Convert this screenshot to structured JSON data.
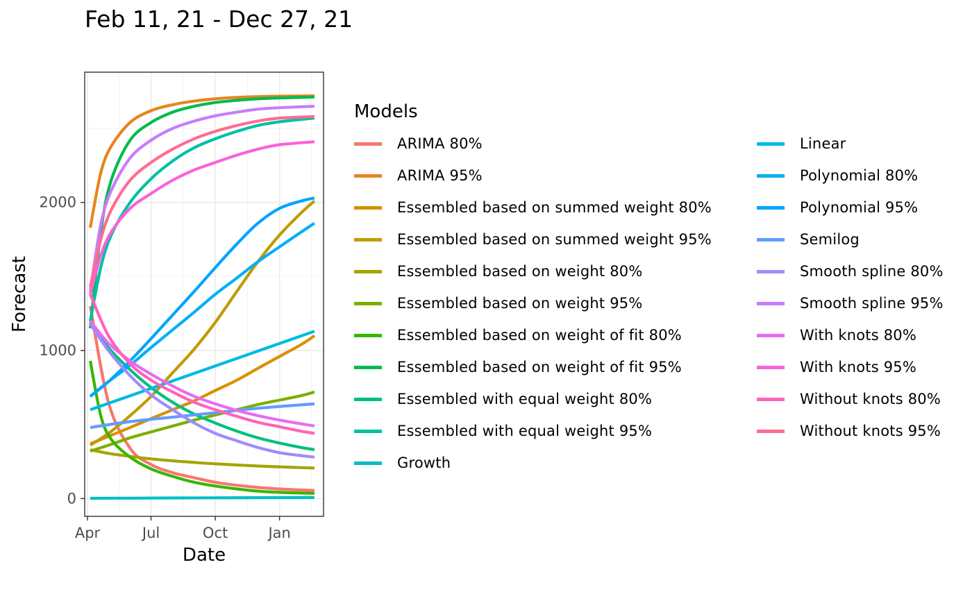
{
  "chart_data": {
    "type": "line",
    "title": "Feb 11, 21 - Dec 27, 21",
    "xlabel": "Date",
    "ylabel": "Forecast",
    "x_range": [
      "2021-03-28",
      "2022-03-05"
    ],
    "ylim": [
      -120,
      2880
    ],
    "x_ticks": [
      {
        "date": "2021-04-01",
        "label": "Apr"
      },
      {
        "date": "2021-07-01",
        "label": "Jul"
      },
      {
        "date": "2021-10-01",
        "label": "Oct"
      },
      {
        "date": "2022-01-01",
        "label": "Jan"
      }
    ],
    "y_ticks": [
      {
        "value": 0,
        "label": "0"
      },
      {
        "value": 1000,
        "label": "1000"
      },
      {
        "value": 2000,
        "label": "2000"
      }
    ],
    "grid": true,
    "legend": {
      "title": "Models",
      "position": "right"
    },
    "series": [
      {
        "name": "ARIMA 80%",
        "color": "#F8766D",
        "points": [
          [
            "2021-04-05",
            1300
          ],
          [
            "2021-05-01",
            650
          ],
          [
            "2021-06-01",
            340
          ],
          [
            "2021-07-01",
            230
          ],
          [
            "2021-08-01",
            175
          ],
          [
            "2021-09-01",
            140
          ],
          [
            "2021-10-01",
            110
          ],
          [
            "2021-11-01",
            90
          ],
          [
            "2021-12-01",
            75
          ],
          [
            "2022-01-01",
            65
          ],
          [
            "2022-02-01",
            58
          ],
          [
            "2022-02-20",
            55
          ]
        ]
      },
      {
        "name": "ARIMA 95%",
        "color": "#E7851E",
        "points": [
          [
            "2021-04-05",
            1830
          ],
          [
            "2021-04-20",
            2200
          ],
          [
            "2021-05-05",
            2380
          ],
          [
            "2021-06-01",
            2540
          ],
          [
            "2021-07-01",
            2620
          ],
          [
            "2021-08-01",
            2660
          ],
          [
            "2021-09-01",
            2685
          ],
          [
            "2021-10-01",
            2700
          ],
          [
            "2021-11-01",
            2710
          ],
          [
            "2021-12-01",
            2715
          ],
          [
            "2022-01-01",
            2718
          ],
          [
            "2022-02-20",
            2720
          ]
        ]
      },
      {
        "name": "Essembled based on summed weight 80%",
        "color": "#D89000",
        "points": [
          [
            "2021-04-05",
            370
          ],
          [
            "2021-05-01",
            420
          ],
          [
            "2021-06-01",
            480
          ],
          [
            "2021-07-01",
            540
          ],
          [
            "2021-08-01",
            600
          ],
          [
            "2021-09-01",
            660
          ],
          [
            "2021-10-01",
            730
          ],
          [
            "2021-11-01",
            800
          ],
          [
            "2021-12-01",
            880
          ],
          [
            "2022-01-01",
            960
          ],
          [
            "2022-02-01",
            1040
          ],
          [
            "2022-02-20",
            1100
          ]
        ]
      },
      {
        "name": "Essembled based on summed weight 95%",
        "color": "#C09B00",
        "points": [
          [
            "2021-04-05",
            360
          ],
          [
            "2021-05-01",
            440
          ],
          [
            "2021-06-01",
            560
          ],
          [
            "2021-07-01",
            690
          ],
          [
            "2021-08-01",
            850
          ],
          [
            "2021-09-01",
            1010
          ],
          [
            "2021-10-01",
            1190
          ],
          [
            "2021-11-01",
            1400
          ],
          [
            "2021-12-01",
            1600
          ],
          [
            "2022-01-01",
            1780
          ],
          [
            "2022-02-01",
            1930
          ],
          [
            "2022-02-20",
            2010
          ]
        ]
      },
      {
        "name": "Essembled based on weight 80%",
        "color": "#A3A500",
        "points": [
          [
            "2021-04-05",
            330
          ],
          [
            "2021-05-01",
            305
          ],
          [
            "2021-06-01",
            285
          ],
          [
            "2021-07-01",
            268
          ],
          [
            "2021-08-01",
            255
          ],
          [
            "2021-09-01",
            244
          ],
          [
            "2021-10-01",
            235
          ],
          [
            "2021-11-01",
            227
          ],
          [
            "2021-12-01",
            220
          ],
          [
            "2022-01-01",
            214
          ],
          [
            "2022-02-01",
            209
          ],
          [
            "2022-02-20",
            206
          ]
        ]
      },
      {
        "name": "Essembled based on weight 95%",
        "color": "#7CAE00",
        "points": [
          [
            "2021-04-05",
            320
          ],
          [
            "2021-05-01",
            360
          ],
          [
            "2021-06-01",
            410
          ],
          [
            "2021-07-01",
            450
          ],
          [
            "2021-08-01",
            490
          ],
          [
            "2021-09-01",
            530
          ],
          [
            "2021-10-01",
            565
          ],
          [
            "2021-11-01",
            600
          ],
          [
            "2021-12-01",
            635
          ],
          [
            "2022-01-01",
            665
          ],
          [
            "2022-02-01",
            695
          ],
          [
            "2022-02-20",
            720
          ]
        ]
      },
      {
        "name": "Essembled based on weight of fit 80%",
        "color": "#39B600",
        "points": [
          [
            "2021-04-05",
            930
          ],
          [
            "2021-04-20",
            560
          ],
          [
            "2021-05-05",
            400
          ],
          [
            "2021-06-01",
            280
          ],
          [
            "2021-07-01",
            200
          ],
          [
            "2021-08-01",
            150
          ],
          [
            "2021-09-01",
            110
          ],
          [
            "2021-10-01",
            85
          ],
          [
            "2021-11-01",
            65
          ],
          [
            "2021-12-01",
            50
          ],
          [
            "2022-01-01",
            42
          ],
          [
            "2022-02-20",
            35
          ]
        ]
      },
      {
        "name": "Essembled based on weight of fit 95%",
        "color": "#00BB4E",
        "points": [
          [
            "2021-04-05",
            1150
          ],
          [
            "2021-04-20",
            1800
          ],
          [
            "2021-05-05",
            2150
          ],
          [
            "2021-06-01",
            2420
          ],
          [
            "2021-07-01",
            2540
          ],
          [
            "2021-08-01",
            2610
          ],
          [
            "2021-09-01",
            2650
          ],
          [
            "2021-10-01",
            2675
          ],
          [
            "2021-11-01",
            2690
          ],
          [
            "2021-12-01",
            2700
          ],
          [
            "2022-01-01",
            2706
          ],
          [
            "2022-02-20",
            2712
          ]
        ]
      },
      {
        "name": "Essembled with equal weight 80%",
        "color": "#00BF7D",
        "points": [
          [
            "2021-04-05",
            1200
          ],
          [
            "2021-05-01",
            1020
          ],
          [
            "2021-06-01",
            870
          ],
          [
            "2021-07-01",
            750
          ],
          [
            "2021-08-01",
            650
          ],
          [
            "2021-09-01",
            570
          ],
          [
            "2021-10-01",
            510
          ],
          [
            "2021-11-01",
            455
          ],
          [
            "2021-12-01",
            410
          ],
          [
            "2022-01-01",
            375
          ],
          [
            "2022-02-01",
            345
          ],
          [
            "2022-02-20",
            330
          ]
        ]
      },
      {
        "name": "Essembled with equal weight 95%",
        "color": "#00C1A3",
        "points": [
          [
            "2021-04-05",
            1200
          ],
          [
            "2021-04-20",
            1560
          ],
          [
            "2021-05-05",
            1780
          ],
          [
            "2021-06-01",
            2000
          ],
          [
            "2021-07-01",
            2160
          ],
          [
            "2021-08-01",
            2280
          ],
          [
            "2021-09-01",
            2370
          ],
          [
            "2021-10-01",
            2430
          ],
          [
            "2021-11-01",
            2480
          ],
          [
            "2021-12-01",
            2520
          ],
          [
            "2022-01-01",
            2545
          ],
          [
            "2022-02-20",
            2570
          ]
        ]
      },
      {
        "name": "Growth",
        "color": "#00BFC4",
        "points": [
          [
            "2021-04-05",
            2
          ],
          [
            "2021-06-01",
            3
          ],
          [
            "2021-08-01",
            4
          ],
          [
            "2021-10-01",
            5
          ],
          [
            "2021-12-01",
            6
          ],
          [
            "2022-02-20",
            7
          ]
        ]
      },
      {
        "name": "Linear",
        "color": "#00BAE0",
        "points": [
          [
            "2021-04-05",
            600
          ],
          [
            "2022-02-20",
            1130
          ]
        ]
      },
      {
        "name": "Polynomial 80%",
        "color": "#00B0F6",
        "points": [
          [
            "2021-04-05",
            690
          ],
          [
            "2021-05-01",
            790
          ],
          [
            "2021-06-01",
            900
          ],
          [
            "2021-07-01",
            1020
          ],
          [
            "2021-08-01",
            1140
          ],
          [
            "2021-09-01",
            1260
          ],
          [
            "2021-10-01",
            1380
          ],
          [
            "2021-11-01",
            1490
          ],
          [
            "2021-12-01",
            1600
          ],
          [
            "2022-01-01",
            1700
          ],
          [
            "2022-02-01",
            1800
          ],
          [
            "2022-02-20",
            1860
          ]
        ]
      },
      {
        "name": "Polynomial 95%",
        "color": "#00A5FF",
        "points": [
          [
            "2021-04-05",
            690
          ],
          [
            "2021-05-01",
            790
          ],
          [
            "2021-06-01",
            930
          ],
          [
            "2021-07-01",
            1080
          ],
          [
            "2021-08-01",
            1240
          ],
          [
            "2021-09-01",
            1400
          ],
          [
            "2021-10-01",
            1560
          ],
          [
            "2021-11-01",
            1720
          ],
          [
            "2021-12-01",
            1860
          ],
          [
            "2022-01-01",
            1960
          ],
          [
            "2022-02-01",
            2010
          ],
          [
            "2022-02-20",
            2030
          ]
        ]
      },
      {
        "name": "Semilog",
        "color": "#619CFF",
        "points": [
          [
            "2021-04-05",
            480
          ],
          [
            "2021-06-01",
            520
          ],
          [
            "2021-08-01",
            550
          ],
          [
            "2021-10-01",
            580
          ],
          [
            "2021-12-01",
            610
          ],
          [
            "2022-02-20",
            640
          ]
        ]
      },
      {
        "name": "Smooth spline 80%",
        "color": "#9F8CFF",
        "points": [
          [
            "2021-04-05",
            1180
          ],
          [
            "2021-05-01",
            1000
          ],
          [
            "2021-06-01",
            830
          ],
          [
            "2021-07-01",
            700
          ],
          [
            "2021-08-01",
            600
          ],
          [
            "2021-09-01",
            510
          ],
          [
            "2021-10-01",
            440
          ],
          [
            "2021-11-01",
            390
          ],
          [
            "2021-12-01",
            345
          ],
          [
            "2022-01-01",
            310
          ],
          [
            "2022-02-01",
            290
          ],
          [
            "2022-02-20",
            280
          ]
        ]
      },
      {
        "name": "Smooth spline 95%",
        "color": "#C77CFF",
        "points": [
          [
            "2021-04-05",
            1400
          ],
          [
            "2021-04-20",
            1850
          ],
          [
            "2021-05-05",
            2080
          ],
          [
            "2021-06-01",
            2300
          ],
          [
            "2021-07-01",
            2420
          ],
          [
            "2021-08-01",
            2500
          ],
          [
            "2021-09-01",
            2550
          ],
          [
            "2021-10-01",
            2585
          ],
          [
            "2021-11-01",
            2610
          ],
          [
            "2021-12-01",
            2630
          ],
          [
            "2022-01-01",
            2640
          ],
          [
            "2022-02-20",
            2650
          ]
        ]
      },
      {
        "name": "With knots 80%",
        "color": "#E76BF3",
        "points": [
          [
            "2021-04-05",
            1200
          ],
          [
            "2021-05-01",
            1050
          ],
          [
            "2021-06-01",
            930
          ],
          [
            "2021-07-01",
            840
          ],
          [
            "2021-08-01",
            760
          ],
          [
            "2021-09-01",
            690
          ],
          [
            "2021-10-01",
            640
          ],
          [
            "2021-11-01",
            595
          ],
          [
            "2021-12-01",
            560
          ],
          [
            "2022-01-01",
            530
          ],
          [
            "2022-02-01",
            505
          ],
          [
            "2022-02-20",
            490
          ]
        ]
      },
      {
        "name": "With knots 95%",
        "color": "#FA62DB",
        "points": [
          [
            "2021-04-05",
            1380
          ],
          [
            "2021-04-20",
            1640
          ],
          [
            "2021-05-05",
            1800
          ],
          [
            "2021-06-01",
            1960
          ],
          [
            "2021-07-01",
            2060
          ],
          [
            "2021-08-01",
            2150
          ],
          [
            "2021-09-01",
            2220
          ],
          [
            "2021-10-01",
            2270
          ],
          [
            "2021-11-01",
            2320
          ],
          [
            "2021-12-01",
            2360
          ],
          [
            "2022-01-01",
            2390
          ],
          [
            "2022-02-20",
            2410
          ]
        ]
      },
      {
        "name": "Without knots 80%",
        "color": "#FF62BC",
        "points": [
          [
            "2021-04-05",
            1380
          ],
          [
            "2021-05-01",
            1100
          ],
          [
            "2021-06-01",
            910
          ],
          [
            "2021-07-01",
            800
          ],
          [
            "2021-08-01",
            720
          ],
          [
            "2021-09-01",
            650
          ],
          [
            "2021-10-01",
            600
          ],
          [
            "2021-11-01",
            555
          ],
          [
            "2021-12-01",
            515
          ],
          [
            "2022-01-01",
            485
          ],
          [
            "2022-02-01",
            455
          ],
          [
            "2022-02-20",
            440
          ]
        ]
      },
      {
        "name": "Without knots 95%",
        "color": "#FF6C91",
        "points": [
          [
            "2021-04-05",
            1430
          ],
          [
            "2021-04-20",
            1750
          ],
          [
            "2021-05-05",
            1950
          ],
          [
            "2021-06-01",
            2150
          ],
          [
            "2021-07-01",
            2270
          ],
          [
            "2021-08-01",
            2360
          ],
          [
            "2021-09-01",
            2430
          ],
          [
            "2021-10-01",
            2480
          ],
          [
            "2021-11-01",
            2520
          ],
          [
            "2021-12-01",
            2550
          ],
          [
            "2022-01-01",
            2570
          ],
          [
            "2022-02-20",
            2580
          ]
        ]
      }
    ]
  }
}
